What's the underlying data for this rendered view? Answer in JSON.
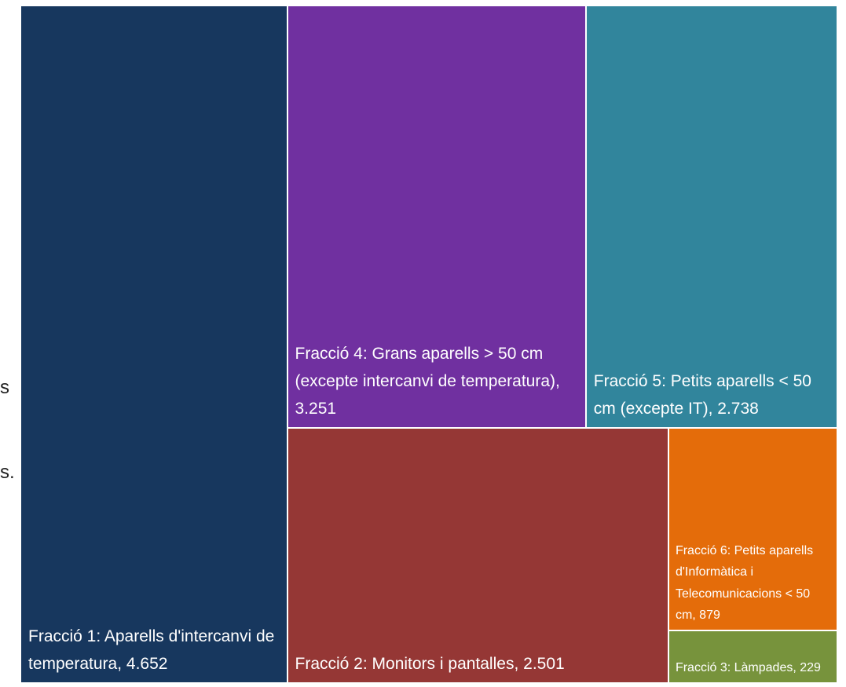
{
  "background_fragments": [
    "s",
    "s."
  ],
  "chart_data": {
    "type": "treemap",
    "categories": [
      "Fracció 1: Aparells d'intercanvi de temperatura,",
      "Fracció 4: Grans aparells > 50 cm (excepte intercanvi de temperatura),",
      "Fracció 5: Petits aparells < 50 cm (excepte IT),",
      "Fracció 2: Monitors i pantalles,",
      "Fracció 6: Petits aparells d'Informàtica i Telecomunicacions < 50 cm,",
      "Fracció 3: Làmpades,"
    ],
    "values": [
      4652,
      3251,
      2738,
      2501,
      879,
      229
    ],
    "value_labels": [
      "4.652",
      "3.251",
      "2.738",
      "2.501",
      "879",
      "229"
    ],
    "colors": [
      "#17375e",
      "#7030a0",
      "#31859c",
      "#953735",
      "#e46c0a",
      "#77933c"
    ]
  }
}
